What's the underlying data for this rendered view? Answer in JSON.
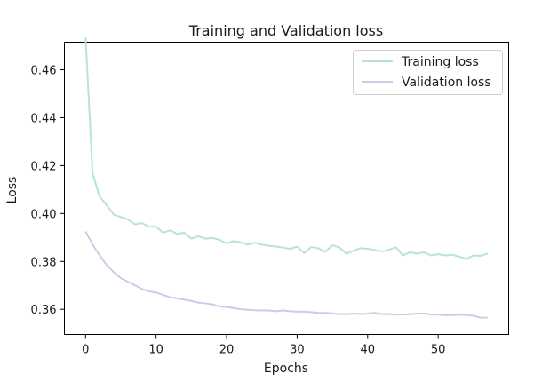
{
  "chart_data": {
    "type": "line",
    "title": "Training and Validation loss",
    "xlabel": "Epochs",
    "ylabel": "Loss",
    "xlim": [
      -3,
      60
    ],
    "ylim": [
      0.3495,
      0.4715
    ],
    "x_ticks": [
      0,
      10,
      20,
      30,
      40,
      50
    ],
    "y_ticks": [
      0.36,
      0.38,
      0.4,
      0.42,
      0.44,
      0.46
    ],
    "x_tick_labels": [
      "0",
      "10",
      "20",
      "30",
      "40",
      "50"
    ],
    "y_tick_labels": [
      "0.36",
      "0.38",
      "0.40",
      "0.42",
      "0.44",
      "0.46"
    ],
    "grid": false,
    "legend_position": "top-right",
    "x": [
      0,
      1,
      2,
      3,
      4,
      5,
      6,
      7,
      8,
      9,
      10,
      11,
      12,
      13,
      14,
      15,
      16,
      17,
      18,
      19,
      20,
      21,
      22,
      23,
      24,
      25,
      26,
      27,
      28,
      29,
      30,
      31,
      32,
      33,
      34,
      35,
      36,
      37,
      38,
      39,
      40,
      41,
      42,
      43,
      44,
      45,
      46,
      47,
      48,
      49,
      50,
      51,
      52,
      53,
      54,
      55,
      56,
      57
    ],
    "series": [
      {
        "name": "Training loss",
        "color": "#b8e2dd",
        "values": [
          0.4735,
          0.4165,
          0.407,
          0.4035,
          0.3995,
          0.3985,
          0.3975,
          0.3955,
          0.396,
          0.3945,
          0.3945,
          0.392,
          0.393,
          0.3915,
          0.392,
          0.3895,
          0.3905,
          0.3895,
          0.3898,
          0.389,
          0.3875,
          0.3885,
          0.388,
          0.387,
          0.3878,
          0.387,
          0.3865,
          0.3862,
          0.3858,
          0.3852,
          0.3862,
          0.3835,
          0.386,
          0.3855,
          0.384,
          0.3868,
          0.3858,
          0.3832,
          0.3845,
          0.3855,
          0.3853,
          0.3848,
          0.3842,
          0.3848,
          0.386,
          0.3825,
          0.3838,
          0.3833,
          0.3838,
          0.3825,
          0.383,
          0.3825,
          0.3828,
          0.382,
          0.381,
          0.3825,
          0.3823,
          0.3833
        ]
      },
      {
        "name": "Validation loss",
        "color": "#cfcbe6",
        "values": [
          0.3925,
          0.387,
          0.3825,
          0.3785,
          0.3755,
          0.373,
          0.3715,
          0.37,
          0.3685,
          0.3675,
          0.367,
          0.366,
          0.365,
          0.3645,
          0.364,
          0.3635,
          0.3628,
          0.3625,
          0.362,
          0.3612,
          0.361,
          0.3605,
          0.36,
          0.3598,
          0.3596,
          0.3595,
          0.3595,
          0.3592,
          0.3595,
          0.3592,
          0.359,
          0.359,
          0.3588,
          0.3585,
          0.3585,
          0.3583,
          0.358,
          0.358,
          0.3582,
          0.358,
          0.3582,
          0.3585,
          0.358,
          0.358,
          0.3578,
          0.3578,
          0.358,
          0.3582,
          0.3582,
          0.3578,
          0.3578,
          0.3575,
          0.3575,
          0.3578,
          0.3575,
          0.3573,
          0.3565,
          0.3565
        ]
      }
    ]
  }
}
